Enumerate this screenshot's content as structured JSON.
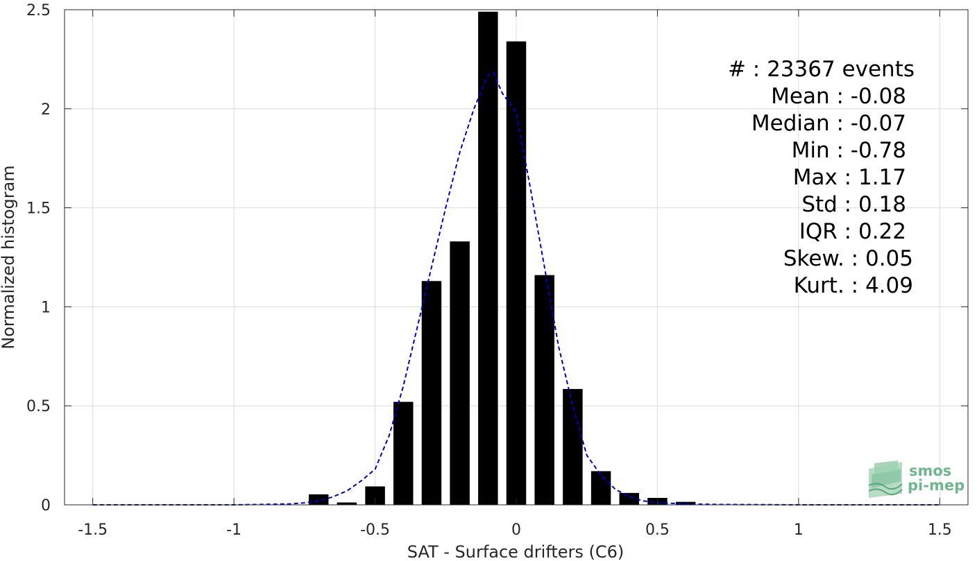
{
  "chart_data": {
    "type": "bar",
    "xlabel": "SAT - Surface drifters (C6)",
    "ylabel": "Normalized histogram",
    "xlim": [
      -1.6,
      1.6
    ],
    "ylim": [
      0,
      2.5
    ],
    "grid": true,
    "xticks": [
      -1.5,
      -1,
      -0.5,
      0,
      0.5,
      1,
      1.5
    ],
    "xtick_labels": [
      "-1.5",
      "-1",
      "-0.5",
      "0",
      "0.5",
      "1",
      "1.5"
    ],
    "yticks": [
      0,
      0.5,
      1,
      1.5,
      2,
      2.5
    ],
    "ytick_labels": [
      "0",
      "0.5",
      "1",
      "1.5",
      "2",
      "2.5"
    ],
    "bar_width": 0.07,
    "bars": {
      "x": [
        -0.7,
        -0.6,
        -0.5,
        -0.4,
        -0.3,
        -0.2,
        -0.1,
        0.0,
        0.1,
        0.2,
        0.3,
        0.4,
        0.5,
        0.6
      ],
      "values": [
        0.053,
        0.012,
        0.093,
        0.52,
        1.13,
        1.33,
        2.49,
        2.34,
        1.16,
        0.585,
        0.17,
        0.06,
        0.035,
        0.015
      ],
      "color": "#000000"
    },
    "fit_curve": {
      "style": "dashed",
      "color": "#0000cc",
      "x": [
        -1.5,
        -1.2,
        -1.0,
        -0.9,
        -0.8,
        -0.75,
        -0.7,
        -0.65,
        -0.6,
        -0.55,
        -0.5,
        -0.45,
        -0.4,
        -0.35,
        -0.3,
        -0.25,
        -0.2,
        -0.15,
        -0.1,
        -0.08,
        -0.05,
        0.0,
        0.05,
        0.1,
        0.15,
        0.2,
        0.25,
        0.3,
        0.35,
        0.4,
        0.45,
        0.5,
        0.6,
        0.7,
        1.0,
        1.5
      ],
      "y": [
        0.0,
        0.0,
        0.0,
        0.002,
        0.005,
        0.01,
        0.02,
        0.04,
        0.07,
        0.12,
        0.18,
        0.35,
        0.6,
        0.9,
        1.2,
        1.5,
        1.78,
        2.0,
        2.17,
        2.18,
        2.08,
        1.98,
        1.6,
        1.2,
        0.8,
        0.5,
        0.25,
        0.15,
        0.08,
        0.04,
        0.02,
        0.01,
        0.005,
        0.002,
        0.0,
        0.0
      ]
    },
    "annotations": [
      "#  : 23367 events",
      "Mean : -0.08",
      "Median : -0.07",
      "Min : -0.78",
      "Max : 1.17",
      "Std : 0.18",
      "IQR : 0.22",
      "Skew. : 0.05",
      "Kurt. : 4.09"
    ]
  },
  "logo": {
    "line1": "smos",
    "line2": "pi-mep",
    "color": "#6fb58f"
  }
}
